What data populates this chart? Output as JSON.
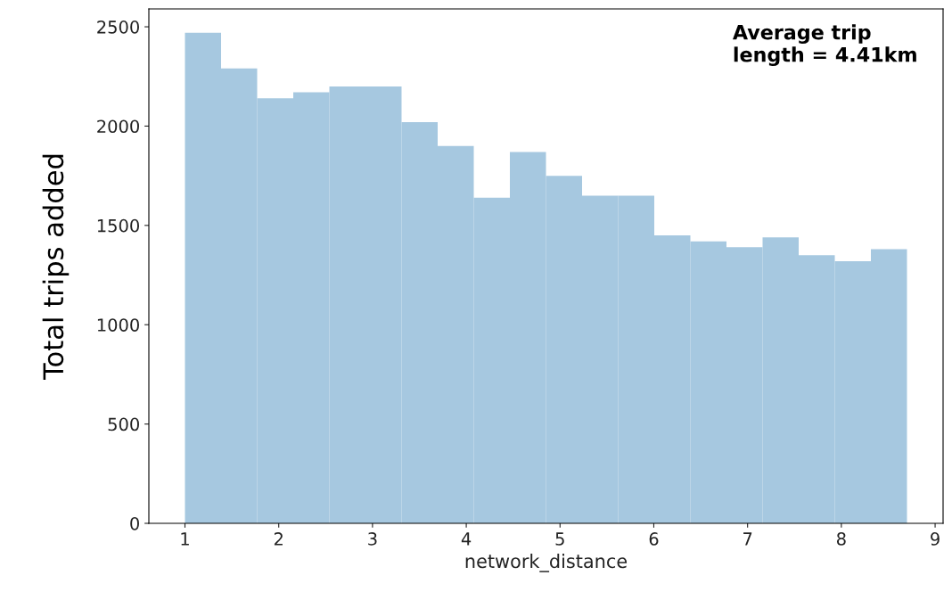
{
  "chart_data": {
    "type": "histogram",
    "xlabel": "network_distance",
    "ylabel": "Total trips added",
    "bins": [
      1.0,
      1.385,
      1.77,
      2.155,
      2.54,
      2.925,
      3.31,
      3.695,
      4.08,
      4.465,
      4.85,
      5.235,
      5.62,
      6.005,
      6.39,
      6.775,
      7.16,
      7.545,
      7.93,
      8.315,
      8.7
    ],
    "values": [
      2470,
      2290,
      2140,
      2170,
      2200,
      2200,
      2020,
      1900,
      1640,
      1870,
      1750,
      1650,
      1650,
      1450,
      1420,
      1390,
      1440,
      1350,
      1320,
      1380
    ],
    "color": "#a6c8e0",
    "xlim": [
      0.615,
      9.085
    ],
    "ylim": [
      0,
      2590
    ],
    "xticks": [
      1,
      2,
      3,
      4,
      5,
      6,
      7,
      8,
      9
    ],
    "yticks": [
      0,
      500,
      1000,
      1500,
      2000,
      2500
    ],
    "annotations": [
      "Average trip\nlength = 4.41km"
    ],
    "grid": false,
    "legend": false
  }
}
